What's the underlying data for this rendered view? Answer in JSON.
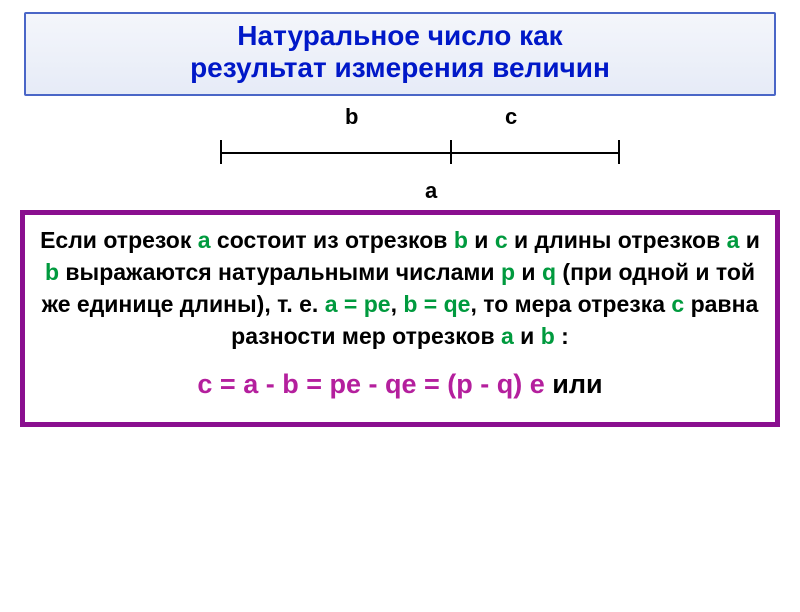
{
  "colors": {
    "title_border": "#4a66c7",
    "title_text": "#0018c8",
    "theorem_border": "#8a0f8f",
    "accent_green": "#009a3e",
    "equation_magenta": "#b41f9d",
    "black": "#000000"
  },
  "title": {
    "line1": "Натуральное число как",
    "line2": "результат измерения величин"
  },
  "diagram": {
    "b": "b",
    "c": "c",
    "a": "a"
  },
  "theorem": {
    "t1": "Если отрезок ",
    "a1": "а",
    "t2": " состоит из отрезков ",
    "b1": "b",
    "t3": " и ",
    "c1": "с",
    "t4": " и длины отрезков ",
    "a2": "а",
    "t5": " и ",
    "b2": "b",
    "t6": " выражаются натуральными числами ",
    "p1": "р",
    "t7": " и ",
    "q1": "q",
    "t8": " (при одной и той же единице длины), т. е. ",
    "eq1": "а = ре",
    "t9": ", ",
    "eq2": "b = qе",
    "t10": ", то мера отрезка ",
    "c2": "с",
    "t11": " равна разности мер отрезков ",
    "a3": "а",
    "t12": " и ",
    "b3": "b",
    "t13": " :"
  },
  "equation": {
    "formula": "с = a - b = pe - qe = (p - q) e",
    "tail": " или"
  },
  "fontsizes": {
    "title": 28,
    "theorem": 23,
    "equation": 27,
    "diagram_label": 22
  }
}
